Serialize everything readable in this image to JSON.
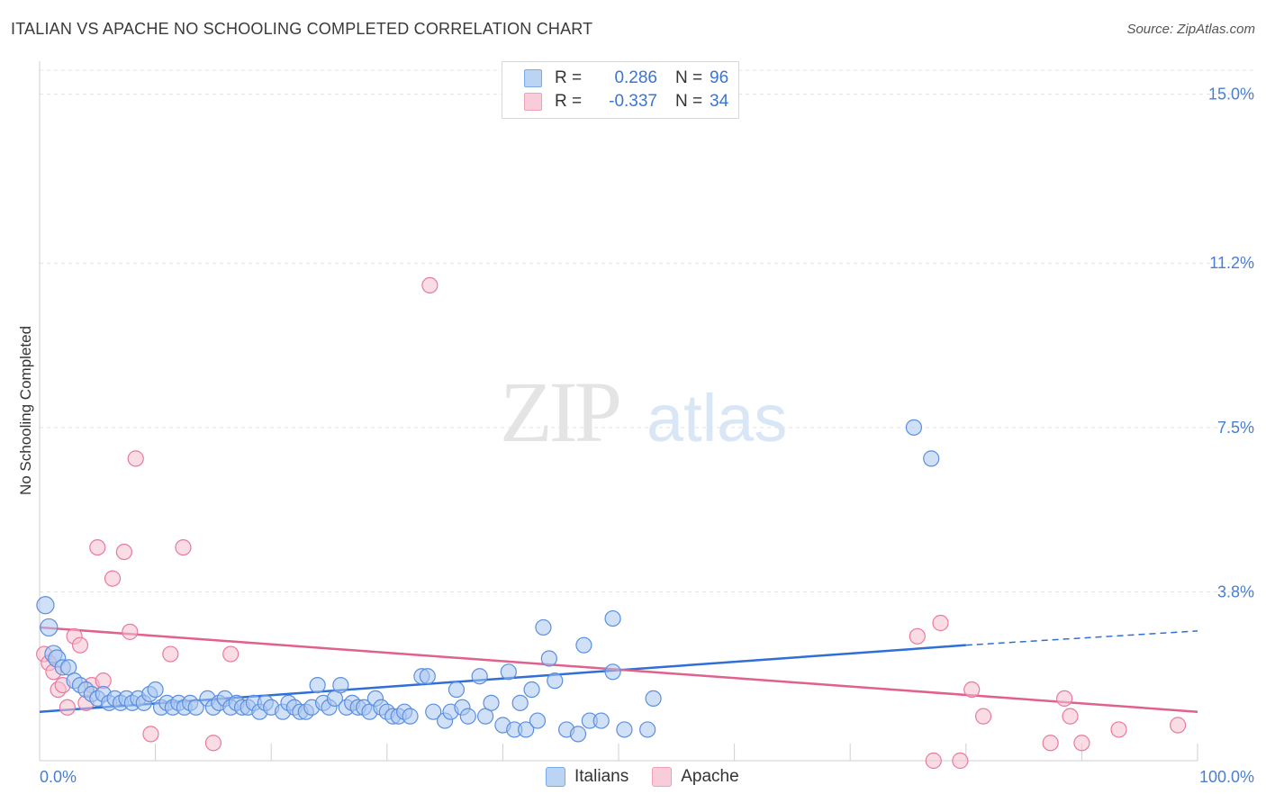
{
  "header": {
    "title": "ITALIAN VS APACHE NO SCHOOLING COMPLETED CORRELATION CHART",
    "source": "Source: ZipAtlas.com"
  },
  "watermark": {
    "zip": "ZIP",
    "atlas": "atlas"
  },
  "legend": {
    "rows": [
      {
        "r_label": "R =",
        "r_value": "0.286",
        "n_label": "N =",
        "n_value": "96",
        "color": "#7aaae8"
      },
      {
        "r_label": "R =",
        "r_value": "-0.337",
        "n_label": "N =",
        "n_value": "34",
        "color": "#f2a0b8"
      }
    ]
  },
  "bottom_legend": {
    "italians": "Italians",
    "apache": "Apache"
  },
  "chart_data": {
    "type": "scatter",
    "title": "ITALIAN VS APACHE NO SCHOOLING COMPLETED CORRELATION CHART",
    "xlabel": "",
    "ylabel": "No Schooling Completed",
    "xlim": [
      0,
      100
    ],
    "ylim": [
      0,
      15.5
    ],
    "x_tick_labels": [
      "0.0%",
      "100.0%"
    ],
    "y_ticks": [
      3.8,
      7.5,
      11.2,
      15.0
    ],
    "y_tick_labels": [
      "3.8%",
      "7.5%",
      "11.2%",
      "15.0%"
    ],
    "grid": true,
    "colors": {
      "italians": "#5b8fe0",
      "italians_fill": "#a9c6f0",
      "apache": "#e97a9e",
      "apache_fill": "#f6bfd0",
      "blue_line": "#2f6fd6",
      "pink_line": "#e0608e",
      "tick_label": "#4a7fd0"
    },
    "series": [
      {
        "name": "Italians",
        "points": [
          [
            0.5,
            3.5
          ],
          [
            0.8,
            3.0
          ],
          [
            1.2,
            2.4
          ],
          [
            1.5,
            2.3
          ],
          [
            2.0,
            2.1
          ],
          [
            2.5,
            2.1
          ],
          [
            3.0,
            1.8
          ],
          [
            3.5,
            1.7
          ],
          [
            4.0,
            1.6
          ],
          [
            4.5,
            1.5
          ],
          [
            5.0,
            1.4
          ],
          [
            5.5,
            1.5
          ],
          [
            6.0,
            1.3
          ],
          [
            6.5,
            1.4
          ],
          [
            7.0,
            1.3
          ],
          [
            7.5,
            1.4
          ],
          [
            8.0,
            1.3
          ],
          [
            8.5,
            1.4
          ],
          [
            9.0,
            1.3
          ],
          [
            9.5,
            1.5
          ],
          [
            10.0,
            1.6
          ],
          [
            10.5,
            1.2
          ],
          [
            11.0,
            1.3
          ],
          [
            11.5,
            1.2
          ],
          [
            12.0,
            1.3
          ],
          [
            12.5,
            1.2
          ],
          [
            13.0,
            1.3
          ],
          [
            13.5,
            1.2
          ],
          [
            14.5,
            1.4
          ],
          [
            15.0,
            1.2
          ],
          [
            15.5,
            1.3
          ],
          [
            16.0,
            1.4
          ],
          [
            16.5,
            1.2
          ],
          [
            17.0,
            1.3
          ],
          [
            17.5,
            1.2
          ],
          [
            18.0,
            1.2
          ],
          [
            18.5,
            1.3
          ],
          [
            19.0,
            1.1
          ],
          [
            19.5,
            1.3
          ],
          [
            20.0,
            1.2
          ],
          [
            21.0,
            1.1
          ],
          [
            21.5,
            1.3
          ],
          [
            22.0,
            1.2
          ],
          [
            22.5,
            1.1
          ],
          [
            23.0,
            1.1
          ],
          [
            23.5,
            1.2
          ],
          [
            24.0,
            1.7
          ],
          [
            24.5,
            1.3
          ],
          [
            25.0,
            1.2
          ],
          [
            25.5,
            1.4
          ],
          [
            26.0,
            1.7
          ],
          [
            26.5,
            1.2
          ],
          [
            27.0,
            1.3
          ],
          [
            27.5,
            1.2
          ],
          [
            28.0,
            1.2
          ],
          [
            28.5,
            1.1
          ],
          [
            29.0,
            1.4
          ],
          [
            29.5,
            1.2
          ],
          [
            30.0,
            1.1
          ],
          [
            30.5,
            1.0
          ],
          [
            31.0,
            1.0
          ],
          [
            31.5,
            1.1
          ],
          [
            32.0,
            1.0
          ],
          [
            33.0,
            1.9
          ],
          [
            33.5,
            1.9
          ],
          [
            34.0,
            1.1
          ],
          [
            35.0,
            0.9
          ],
          [
            35.5,
            1.1
          ],
          [
            36.0,
            1.6
          ],
          [
            36.5,
            1.2
          ],
          [
            37.0,
            1.0
          ],
          [
            38.0,
            1.9
          ],
          [
            38.5,
            1.0
          ],
          [
            39.0,
            1.3
          ],
          [
            40.0,
            0.8
          ],
          [
            40.5,
            2.0
          ],
          [
            41.0,
            0.7
          ],
          [
            41.5,
            1.3
          ],
          [
            42.0,
            0.7
          ],
          [
            42.5,
            1.6
          ],
          [
            43.0,
            0.9
          ],
          [
            43.5,
            3.0
          ],
          [
            44.0,
            2.3
          ],
          [
            44.5,
            1.8
          ],
          [
            45.5,
            0.7
          ],
          [
            46.5,
            0.6
          ],
          [
            47.0,
            2.6
          ],
          [
            47.5,
            0.9
          ],
          [
            48.5,
            0.9
          ],
          [
            49.5,
            3.2
          ],
          [
            49.5,
            2.0
          ],
          [
            50.5,
            0.7
          ],
          [
            52.5,
            0.7
          ],
          [
            53.0,
            1.4
          ],
          [
            75.5,
            7.5
          ],
          [
            77.0,
            6.8
          ]
        ],
        "trend": {
          "x0": 0,
          "y0": 1.1,
          "x1": 80,
          "y1": 2.6,
          "dashed_to_x": 100,
          "dashed_to_y": 2.92
        }
      },
      {
        "name": "Apache",
        "points": [
          [
            0.4,
            2.4
          ],
          [
            0.8,
            2.2
          ],
          [
            1.2,
            2.0
          ],
          [
            1.6,
            1.6
          ],
          [
            2.0,
            1.7
          ],
          [
            2.4,
            1.2
          ],
          [
            3.0,
            2.8
          ],
          [
            3.5,
            2.6
          ],
          [
            4.0,
            1.3
          ],
          [
            4.5,
            1.7
          ],
          [
            5.0,
            4.8
          ],
          [
            5.5,
            1.8
          ],
          [
            6.3,
            4.1
          ],
          [
            7.3,
            4.7
          ],
          [
            7.8,
            2.9
          ],
          [
            8.3,
            6.8
          ],
          [
            9.6,
            0.6
          ],
          [
            11.3,
            2.4
          ],
          [
            12.4,
            4.8
          ],
          [
            15.0,
            0.4
          ],
          [
            16.5,
            2.4
          ],
          [
            33.7,
            10.7
          ],
          [
            75.8,
            2.8
          ],
          [
            77.2,
            0.0
          ],
          [
            77.8,
            3.1
          ],
          [
            79.5,
            0.0
          ],
          [
            80.5,
            1.6
          ],
          [
            81.5,
            1.0
          ],
          [
            87.3,
            0.4
          ],
          [
            88.5,
            1.4
          ],
          [
            89.0,
            1.0
          ],
          [
            90.0,
            0.4
          ],
          [
            93.2,
            0.7
          ],
          [
            98.3,
            0.8
          ]
        ],
        "trend": {
          "x0": 0,
          "y0": 3.0,
          "x1": 100,
          "y1": 1.1
        }
      }
    ]
  }
}
